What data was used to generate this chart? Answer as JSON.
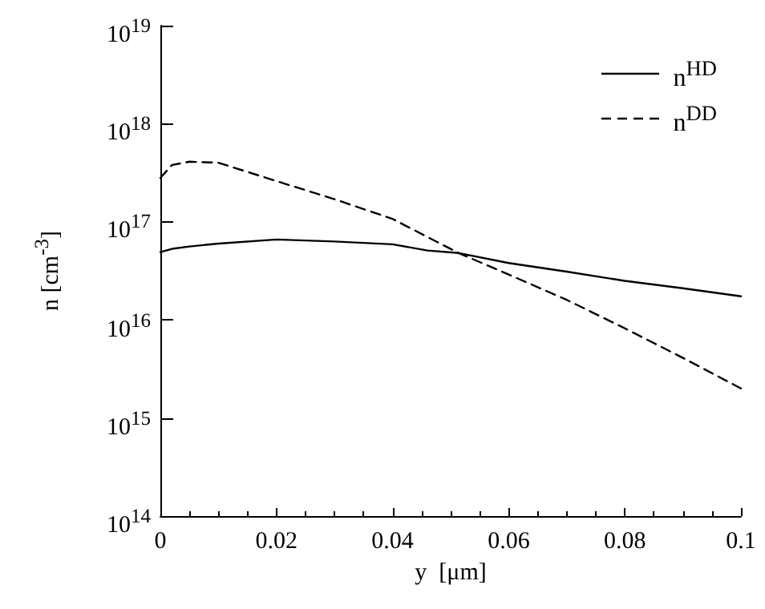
{
  "chart_data": {
    "type": "line",
    "xlabel": "y  [μm]",
    "ylabel": "n  [cm$^{-3}$]",
    "log": "y",
    "xlim": [
      0,
      0.1
    ],
    "xticks": [
      0,
      0.02,
      0.04,
      0.06,
      0.08,
      0.1
    ],
    "ylim": [
      100000000000000.0,
      1e+19
    ],
    "yticks": [
      {
        "value": 100000000000000.0,
        "label": "10$^{14}$"
      },
      {
        "value": 1000000000000000.0,
        "label": "10$^{15}$"
      },
      {
        "value": 1e+16,
        "label": "10$^{16}$"
      },
      {
        "value": 1e+17,
        "label": "10$^{17}$"
      },
      {
        "value": 1e+18,
        "label": "10$^{18}$"
      },
      {
        "value": 1e+19,
        "label": "10$^{19}$"
      }
    ],
    "grid": false,
    "legend": "top right",
    "marker": "none",
    "x": [
      0,
      0.002,
      0.005,
      0.01,
      0.02,
      0.03,
      0.04,
      0.046,
      0.0514,
      0.06,
      0.07,
      0.08,
      0.09,
      0.1
    ],
    "series": [
      {
        "name": "n$^{HD}$",
        "color": "#000000",
        "line_style": "solid",
        "values": [
          4.9e+16,
          5.3e+16,
          5.6e+16,
          6e+16,
          6.6e+16,
          6.3e+16,
          5.9e+16,
          5.1e+16,
          4.8e+16,
          3.8e+16,
          3.1e+16,
          2.5e+16,
          2.1e+16,
          1.74e+16
        ]
      },
      {
        "name": "n$^{DD}$",
        "color": "#000000",
        "line_style": "dashed",
        "values": [
          2.8e+17,
          3.8e+17,
          4.1e+17,
          4e+17,
          2.6e+17,
          1.7e+17,
          1.07e+17,
          7e+16,
          4.8e+16,
          2.9e+16,
          1.6e+16,
          8200000000000000.0,
          4100000000000000.0,
          2000000000000000.0
        ]
      }
    ]
  }
}
